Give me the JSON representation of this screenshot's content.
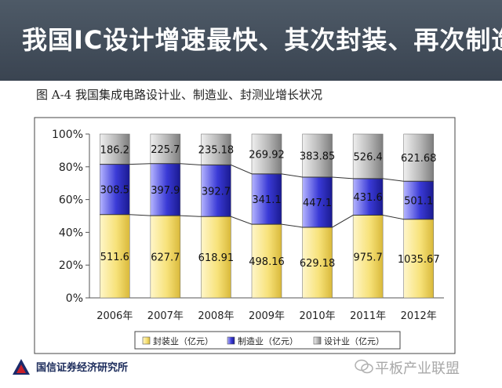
{
  "slide": {
    "title": "我国IC设计增速最快、其次封装、再次制造",
    "caption": "图 A-4   我国集成电路设计业、制造业、封测业增长状况"
  },
  "footer": {
    "org_name": "国信证券经济研究所",
    "watermark": "平板产业联盟"
  },
  "chart_data": {
    "type": "bar",
    "stacking": "percent",
    "categories": [
      "2006年",
      "2007年",
      "2008年",
      "2009年",
      "2010年",
      "2011年",
      "2012年"
    ],
    "series": [
      {
        "name": "封装业（亿元）",
        "values": [
          511.6,
          627.7,
          618.91,
          498.16,
          629.18,
          975.7,
          1035.67
        ],
        "color": "#f7e27a"
      },
      {
        "name": "制造业（亿元）",
        "values": [
          308.5,
          397.9,
          392.7,
          341.1,
          447.1,
          431.6,
          501.1
        ],
        "color": "#3a3ad6"
      },
      {
        "name": "设计业（亿元）",
        "values": [
          186.2,
          225.7,
          235.18,
          269.92,
          383.85,
          526.4,
          621.68
        ],
        "color": "#a9a9a9"
      }
    ],
    "value_labels": [
      [
        "511.6",
        "627.7",
        "618.91",
        "498.16",
        "629.18",
        "975.7",
        "1035.67"
      ],
      [
        "308.5",
        "397.9",
        "392.7",
        "341.1",
        "447.1",
        "431.6",
        "501.1"
      ],
      [
        "186.2",
        "225.7",
        "235.18",
        "269.92",
        "383.85",
        "526.4",
        "621.68"
      ]
    ],
    "yticks": [
      "0%",
      "20%",
      "40%",
      "60%",
      "80%",
      "100%"
    ],
    "ylim": [
      0,
      100
    ],
    "grid": false,
    "series_lines": true,
    "legend": "bottom"
  }
}
